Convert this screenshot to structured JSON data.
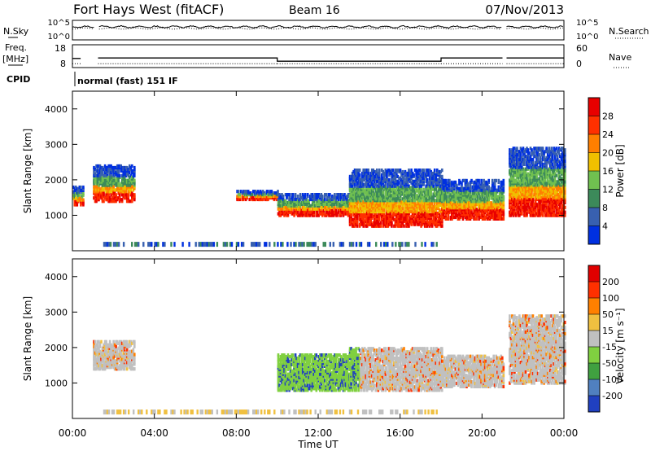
{
  "header": {
    "station": "Fort Hays West (fitACF)",
    "beam": "Beam 16",
    "date": "07/Nov/2013"
  },
  "side_labels": {
    "nsky": "N.Sky",
    "nsearch": "N.Search",
    "freq": "Freq.",
    "freq_unit": "[MHz]",
    "nave": "Nave",
    "cpid": "CPID",
    "cpid_text": "normal (fast) 151 IF"
  },
  "chart_data": [
    {
      "type": "line",
      "panel": "noise",
      "y_ticks": [
        "10^5",
        "10^0"
      ],
      "right_ticks": [
        "10^5",
        "10^0"
      ],
      "series": [
        {
          "name": "N.Sky",
          "style": "solid"
        },
        {
          "name": "N.Search",
          "style": "dotted"
        }
      ],
      "gaps_hours": [
        [
          1.1,
          1.3
        ],
        [
          21.0,
          21.2
        ]
      ]
    },
    {
      "type": "line",
      "panel": "frequency",
      "y_ticks_left": [
        "18",
        "8"
      ],
      "y_ticks_right": [
        "60",
        "0"
      ],
      "ylim_left": [
        8,
        18
      ],
      "ylim_right": [
        0,
        60
      ],
      "freq_segments_hours_mhz": [
        [
          0.0,
          0.4,
          12
        ],
        [
          1.25,
          10.0,
          12.2
        ],
        [
          10.0,
          18.0,
          10.8
        ],
        [
          18.0,
          21.0,
          12.2
        ],
        [
          21.2,
          24.0,
          12.2
        ]
      ],
      "nave_level": 10
    },
    {
      "type": "heatmap",
      "panel": "power",
      "ylabel": "Slant Range [km]",
      "yticks": [
        1000,
        2000,
        3000,
        4000
      ],
      "ylim": [
        0,
        4500
      ],
      "xlim_hours": [
        0,
        24
      ],
      "colorbar": {
        "label": "Power [dB]",
        "ticks": [
          "4",
          "8",
          "12",
          "16",
          "20",
          "24",
          "28"
        ],
        "colors": [
          "#0030e0",
          "#3860b0",
          "#3c8a5a",
          "#70c050",
          "#f0c000",
          "#ff7f00",
          "#ff3000",
          "#e80000"
        ]
      },
      "echo_regions_hours_km": [
        [
          0.0,
          0.5,
          1300,
          1800
        ],
        [
          1.0,
          3.0,
          1400,
          2400
        ],
        [
          8.0,
          10.0,
          1450,
          1700
        ],
        [
          10.0,
          13.5,
          1000,
          1600
        ],
        [
          13.5,
          18.0,
          700,
          2300
        ],
        [
          18.0,
          21.0,
          900,
          2000
        ],
        [
          21.3,
          24.0,
          1000,
          2900
        ]
      ]
    },
    {
      "type": "heatmap",
      "panel": "velocity",
      "ylabel": "Slant Range [km]",
      "yticks": [
        1000,
        2000,
        3000,
        4000
      ],
      "ylim": [
        0,
        4500
      ],
      "xlim_hours": [
        0,
        24
      ],
      "xticks": [
        "00:00",
        "04:00",
        "08:00",
        "12:00",
        "16:00",
        "20:00",
        "00:00"
      ],
      "xlabel": "Time UT",
      "colorbar": {
        "label": "Velocity [m s⁻¹]",
        "ticks": [
          "200",
          "100",
          "50",
          "15",
          "-15",
          "-50",
          "-100",
          "-200"
        ],
        "colors": [
          "#2040c0",
          "#5080c0",
          "#40a040",
          "#80d040",
          "#c0c0c0",
          "#f0c040",
          "#ff8000",
          "#ff3000",
          "#e00000"
        ]
      },
      "echo_regions_hours_km": [
        [
          1.0,
          3.0,
          1400,
          2200
        ],
        [
          10.0,
          13.5,
          800,
          1800
        ],
        [
          13.5,
          18.0,
          800,
          2000
        ],
        [
          18.0,
          21.0,
          900,
          1800
        ],
        [
          21.3,
          24.0,
          1000,
          2900
        ]
      ]
    }
  ]
}
